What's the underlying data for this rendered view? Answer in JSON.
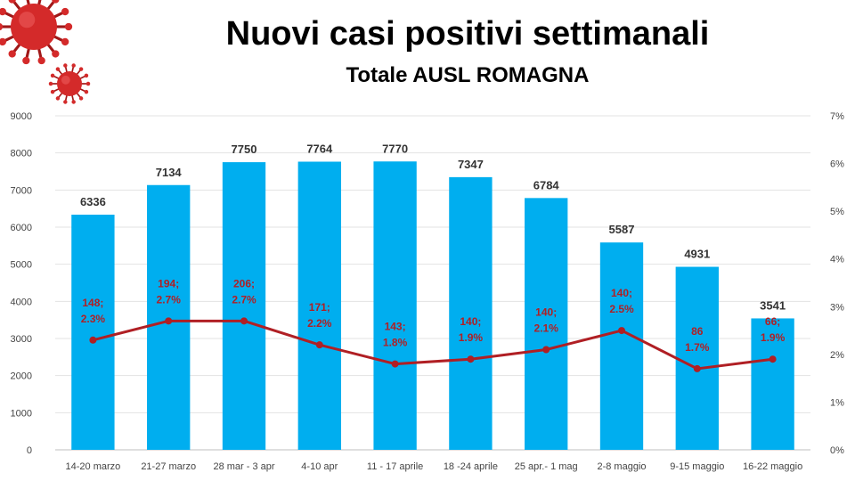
{
  "chart_data": {
    "type": "bar",
    "title": "Nuovi casi positivi settimanali",
    "subtitle": "Totale AUSL ROMAGNA",
    "categories": [
      "14-20 marzo",
      "21-27 marzo",
      "28 mar - 3 apr",
      "4-10 apr",
      "11 - 17 aprile",
      "18 -24 aprile",
      "25 apr.- 1 mag",
      "2-8 maggio",
      "9-15 maggio",
      "16-22 maggio"
    ],
    "ylim": [
      0,
      9000
    ],
    "y_ticks": [
      "0",
      "1000",
      "2000",
      "3000",
      "4000",
      "5000",
      "6000",
      "7000",
      "8000",
      "9000"
    ],
    "y2lim": [
      0,
      7
    ],
    "y2_ticks": [
      "0%",
      "1%",
      "2%",
      "3%",
      "4%",
      "5%",
      "6%",
      "7%"
    ],
    "grid": true,
    "series": [
      {
        "type": "bar",
        "axis": "left",
        "values": [
          6336,
          7134,
          7750,
          7764,
          7770,
          7347,
          6784,
          5587,
          4931,
          3541
        ],
        "labels": [
          "6336",
          "7134",
          "7750",
          "7764",
          "7770",
          "7347",
          "6784",
          "5587",
          "4931",
          "3541"
        ]
      },
      {
        "type": "line",
        "axis": "right",
        "counts": [
          148,
          194,
          206,
          171,
          143,
          140,
          140,
          140,
          86,
          66
        ],
        "values": [
          2.3,
          2.7,
          2.7,
          2.2,
          1.8,
          1.9,
          2.1,
          2.5,
          1.7,
          1.9
        ],
        "label_line1": [
          "148;",
          "194;",
          "206;",
          "171;",
          "143;",
          "140;",
          "140;",
          "140;",
          "86",
          "66;"
        ],
        "label_line2": [
          "2.3%",
          "2.7%",
          "2.7%",
          "2.2%",
          "1.8%",
          "1.9%",
          "2.1%",
          "2.5%",
          "1.7%",
          "1.9%"
        ]
      }
    ],
    "colors": {
      "bar": "#00AEEF",
      "line": "#B01F24",
      "grid": "#E3E3E3",
      "virus": "#D42A2A",
      "virus_dark": "#A01818"
    },
    "decorations": [
      "virus-icon",
      "virus-icon-small"
    ]
  }
}
